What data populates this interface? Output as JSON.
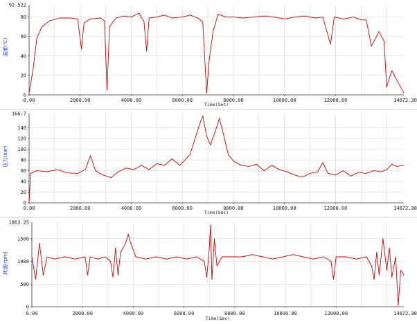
{
  "colors": {
    "line": "#d40000",
    "grid": "#cfcfcf",
    "axis": "#333333",
    "ylabel": "#1f3fd6",
    "separator": "#bfbfbf"
  },
  "chart_data": [
    {
      "type": "line",
      "ylabel": "温度(℃)",
      "xlabel": "Time(Sec)",
      "xlim": [
        0,
        14672.3
      ],
      "ylim": [
        0,
        92.522
      ],
      "ymax_label": "92.522",
      "xmax_label": "14672.30",
      "x_ticks": [
        "0.00",
        "2000.00",
        "4000.00",
        "6000.00",
        "8000.00",
        "10000.00",
        "12000.00"
      ],
      "y_ticks": [
        "0",
        "20",
        "40",
        "60",
        "80"
      ],
      "y_tick_values": [
        0,
        20,
        40,
        60,
        80
      ],
      "grid": true,
      "series": [
        {
          "values": [
            [
              0,
              2
            ],
            [
              150,
              25
            ],
            [
              300,
              58
            ],
            [
              500,
              70
            ],
            [
              800,
              76
            ],
            [
              1200,
              79
            ],
            [
              1600,
              79
            ],
            [
              1900,
              78
            ],
            [
              2050,
              47
            ],
            [
              2150,
              74
            ],
            [
              2400,
              78
            ],
            [
              2800,
              79
            ],
            [
              2950,
              76
            ],
            [
              3050,
              5
            ],
            [
              3150,
              70
            ],
            [
              3400,
              79
            ],
            [
              3700,
              81
            ],
            [
              4000,
              80
            ],
            [
              4300,
              84
            ],
            [
              4500,
              75
            ],
            [
              4600,
              45
            ],
            [
              4700,
              79
            ],
            [
              5000,
              80
            ],
            [
              5300,
              82
            ],
            [
              5600,
              79
            ],
            [
              6000,
              80
            ],
            [
              6300,
              82
            ],
            [
              6600,
              79
            ],
            [
              6800,
              75
            ],
            [
              6950,
              2
            ],
            [
              7050,
              35
            ],
            [
              7200,
              65
            ],
            [
              7400,
              83
            ],
            [
              7700,
              80
            ],
            [
              8000,
              80
            ],
            [
              8400,
              79
            ],
            [
              8800,
              80
            ],
            [
              9200,
              81
            ],
            [
              9600,
              80
            ],
            [
              10000,
              78
            ],
            [
              10400,
              80
            ],
            [
              10800,
              81
            ],
            [
              11200,
              79
            ],
            [
              11500,
              80
            ],
            [
              11800,
              52
            ],
            [
              11950,
              80
            ],
            [
              12300,
              78
            ],
            [
              12700,
              80
            ],
            [
              13000,
              77
            ],
            [
              13200,
              77
            ],
            [
              13400,
              50
            ],
            [
              13700,
              65
            ],
            [
              13900,
              55
            ],
            [
              14000,
              8
            ],
            [
              14200,
              25
            ],
            [
              14400,
              15
            ],
            [
              14672,
              2
            ]
          ]
        }
      ]
    },
    {
      "type": "line",
      "ylabel": "压力(bar)",
      "xlabel": "Time(Sec)",
      "xlim": [
        0,
        14672.3
      ],
      "ylim": [
        0,
        166.7
      ],
      "ymax_label": "166.7",
      "xmax_label": "14672.30",
      "x_ticks": [
        "0.00",
        "2000.00",
        "4000.00",
        "6000.00",
        "8000.00",
        "10000.00",
        "12000.00"
      ],
      "y_ticks": [
        "0",
        "20",
        "40",
        "60",
        "80",
        "100",
        "120",
        "140"
      ],
      "y_tick_values": [
        0,
        20,
        40,
        60,
        80,
        100,
        120,
        140
      ],
      "grid": true,
      "series": [
        {
          "values": [
            [
              0,
              0
            ],
            [
              60,
              55
            ],
            [
              300,
              60
            ],
            [
              700,
              58
            ],
            [
              1100,
              62
            ],
            [
              1500,
              56
            ],
            [
              1900,
              55
            ],
            [
              2200,
              62
            ],
            [
              2400,
              88
            ],
            [
              2600,
              60
            ],
            [
              2900,
              52
            ],
            [
              3200,
              47
            ],
            [
              3500,
              58
            ],
            [
              3800,
              65
            ],
            [
              4100,
              62
            ],
            [
              4400,
              70
            ],
            [
              4700,
              62
            ],
            [
              5000,
              73
            ],
            [
              5300,
              70
            ],
            [
              5600,
              82
            ],
            [
              5900,
              70
            ],
            [
              6100,
              80
            ],
            [
              6300,
              90
            ],
            [
              6500,
              120
            ],
            [
              6700,
              150
            ],
            [
              6800,
              162
            ],
            [
              6950,
              125
            ],
            [
              7100,
              108
            ],
            [
              7300,
              135
            ],
            [
              7450,
              158
            ],
            [
              7600,
              130
            ],
            [
              7800,
              90
            ],
            [
              8000,
              78
            ],
            [
              8300,
              70
            ],
            [
              8600,
              68
            ],
            [
              8900,
              72
            ],
            [
              9200,
              60
            ],
            [
              9500,
              70
            ],
            [
              9800,
              62
            ],
            [
              10100,
              58
            ],
            [
              10400,
              52
            ],
            [
              10700,
              48
            ],
            [
              11000,
              55
            ],
            [
              11300,
              58
            ],
            [
              11500,
              75
            ],
            [
              11700,
              55
            ],
            [
              12000,
              52
            ],
            [
              12300,
              60
            ],
            [
              12600,
              50
            ],
            [
              12900,
              57
            ],
            [
              13200,
              55
            ],
            [
              13500,
              60
            ],
            [
              13800,
              58
            ],
            [
              14000,
              62
            ],
            [
              14200,
              72
            ],
            [
              14400,
              68
            ],
            [
              14672,
              70
            ]
          ]
        }
      ]
    },
    {
      "type": "line",
      "ylabel": "转速(rpm)",
      "xlabel": "Time(Sec)",
      "xlim": [
        0,
        14672.3
      ],
      "ylim": [
        0,
        1863.25
      ],
      "ymax_label": "1863.25",
      "xmax_label": "14672.30",
      "x_ticks": [
        "0.00",
        "2000.00",
        "4000.00",
        "6000.00",
        "8000.00",
        "10000.00",
        "12000.00"
      ],
      "y_ticks": [
        "0",
        "500",
        "1000",
        "1500"
      ],
      "y_tick_values": [
        0,
        500,
        1000,
        1500
      ],
      "grid": true,
      "series": [
        {
          "values": [
            [
              0,
              1100
            ],
            [
              150,
              600
            ],
            [
              300,
              1400
            ],
            [
              450,
              700
            ],
            [
              600,
              1100
            ],
            [
              900,
              1050
            ],
            [
              1300,
              1100
            ],
            [
              1700,
              1050
            ],
            [
              2100,
              1100
            ],
            [
              2200,
              700
            ],
            [
              2300,
              1100
            ],
            [
              2600,
              1050
            ],
            [
              2900,
              1100
            ],
            [
              3100,
              1000
            ],
            [
              3200,
              650
            ],
            [
              3300,
              1300
            ],
            [
              3400,
              700
            ],
            [
              3500,
              1200
            ],
            [
              3700,
              1400
            ],
            [
              3800,
              1600
            ],
            [
              3900,
              1400
            ],
            [
              4100,
              1100
            ],
            [
              4500,
              1050
            ],
            [
              4900,
              1100
            ],
            [
              5300,
              1050
            ],
            [
              5700,
              1100
            ],
            [
              6100,
              1050
            ],
            [
              6500,
              1100
            ],
            [
              6800,
              1000
            ],
            [
              6900,
              650
            ],
            [
              7000,
              1300
            ],
            [
              7050,
              1800
            ],
            [
              7100,
              600
            ],
            [
              7200,
              1500
            ],
            [
              7300,
              900
            ],
            [
              7500,
              1100
            ],
            [
              7900,
              1100
            ],
            [
              8300,
              1100
            ],
            [
              8700,
              1150
            ],
            [
              9100,
              1100
            ],
            [
              9500,
              1050
            ],
            [
              9900,
              1100
            ],
            [
              10300,
              1150
            ],
            [
              10700,
              1100
            ],
            [
              11100,
              1050
            ],
            [
              11500,
              1100
            ],
            [
              11800,
              1000
            ],
            [
              11900,
              600
            ],
            [
              12000,
              1100
            ],
            [
              12400,
              1100
            ],
            [
              12800,
              1050
            ],
            [
              13200,
              1100
            ],
            [
              13400,
              900
            ],
            [
              13500,
              600
            ],
            [
              13600,
              1200
            ],
            [
              13700,
              700
            ],
            [
              13850,
              1500
            ],
            [
              14000,
              800
            ],
            [
              14100,
              1300
            ],
            [
              14200,
              650
            ],
            [
              14350,
              1100
            ],
            [
              14450,
              30
            ],
            [
              14550,
              800
            ],
            [
              14672,
              700
            ]
          ]
        }
      ]
    }
  ]
}
